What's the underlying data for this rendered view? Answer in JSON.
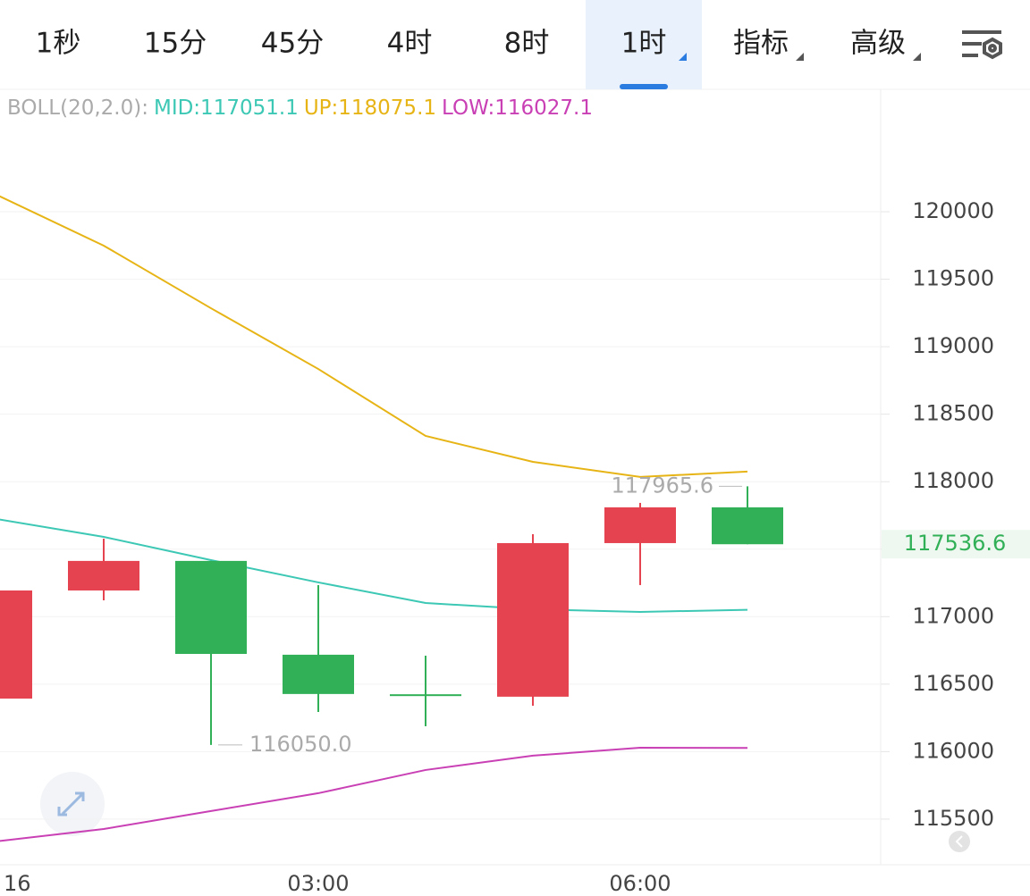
{
  "tabs": {
    "items": [
      {
        "label": "1秒",
        "dropdown": false
      },
      {
        "label": "15分",
        "dropdown": false
      },
      {
        "label": "45分",
        "dropdown": false
      },
      {
        "label": "4时",
        "dropdown": false
      },
      {
        "label": "8时",
        "dropdown": false
      },
      {
        "label": "1时",
        "dropdown": true
      },
      {
        "label": "指标",
        "dropdown": true
      },
      {
        "label": "高级",
        "dropdown": true
      }
    ],
    "active": 5
  },
  "chart_data": {
    "type": "candlestick",
    "indicator": "BOLL(20,2.0):",
    "categories": [
      "16",
      null,
      null,
      "03:00",
      null,
      null,
      "06:00",
      null
    ],
    "open": [
      116393,
      117194,
      117413,
      116718,
      116425,
      116407,
      117545,
      117810
    ],
    "high": [
      117194,
      117578,
      117413,
      117234,
      116711,
      117611,
      117843,
      117965.6
    ],
    "low": [
      116393,
      117121,
      116050,
      116294,
      116188,
      116340,
      117234,
      117536.6
    ],
    "close": [
      117194,
      117413,
      116724,
      116427,
      116420,
      117545,
      117810,
      117536.6
    ],
    "low_label": "116050.0",
    "up_color": "#e5434f",
    "down_color": "#31b057",
    "series": [
      {
        "name": "MID:117051.1",
        "color": "#3cc8b4",
        "values": [
          117724,
          117591,
          117419,
          117254,
          117101,
          117055,
          117035,
          117051.1
        ]
      },
      {
        "name": "UP:118075.1",
        "color": "#e7b416",
        "values": [
          120126,
          119749,
          119285,
          118835,
          118339,
          118147,
          118035,
          118075.1
        ]
      },
      {
        "name": "LOW:116027.1",
        "color": "#c940b5",
        "values": [
          115335,
          115427,
          115560,
          115692,
          115864,
          115970,
          116029,
          116027.1
        ]
      }
    ],
    "ylim": [
      115162,
      120907
    ],
    "yticks": [
      115500,
      116000,
      116500,
      117000,
      117500,
      118000,
      118500,
      119000,
      119500,
      120000
    ],
    "grid": true
  }
}
